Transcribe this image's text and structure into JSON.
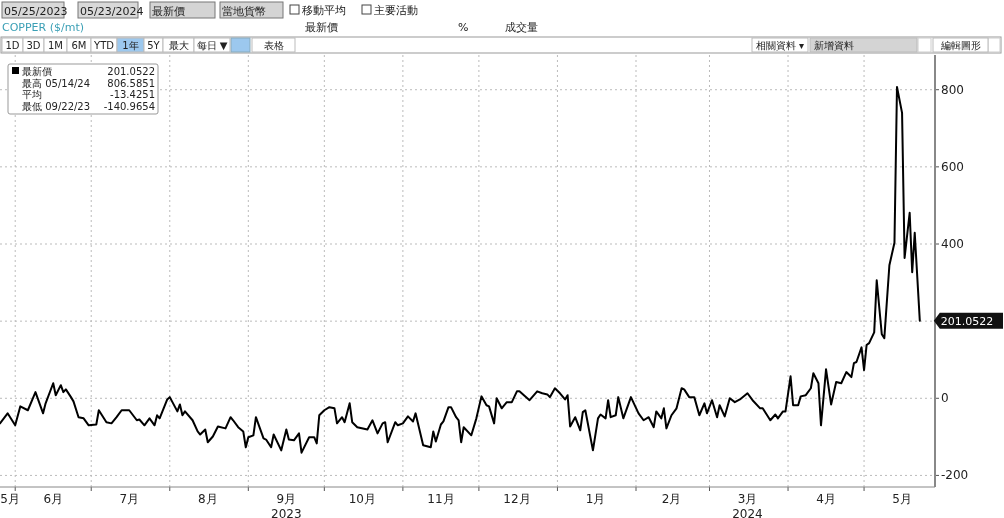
{
  "chart_data": {
    "type": "line",
    "title": "COPPER ($/mt)",
    "x": [
      "2023-05-26",
      "2023-05-29",
      "2023-06-01",
      "2023-06-03",
      "2023-06-06",
      "2023-06-09",
      "2023-06-12",
      "2023-06-13",
      "2023-06-16",
      "2023-06-17",
      "2023-06-19",
      "2023-06-20",
      "2023-06-21",
      "2023-06-23",
      "2023-06-24",
      "2023-06-26",
      "2023-06-28",
      "2023-06-30",
      "2023-07-03",
      "2023-07-04",
      "2023-07-07",
      "2023-07-09",
      "2023-07-11",
      "2023-07-13",
      "2023-07-16",
      "2023-07-19",
      "2023-07-20",
      "2023-07-22",
      "2023-07-24",
      "2023-07-26",
      "2023-07-27",
      "2023-07-28",
      "2023-07-31",
      "2023-08-01",
      "2023-08-04",
      "2023-08-05",
      "2023-08-06",
      "2023-08-07",
      "2023-08-10",
      "2023-08-12",
      "2023-08-13",
      "2023-08-15",
      "2023-08-16",
      "2023-08-18",
      "2023-08-20",
      "2023-08-23",
      "2023-08-25",
      "2023-08-26",
      "2023-08-28",
      "2023-08-30",
      "2023-08-31",
      "2023-09-01",
      "2023-09-03",
      "2023-09-04",
      "2023-09-07",
      "2023-09-08",
      "2023-09-10",
      "2023-09-11",
      "2023-09-14",
      "2023-09-16",
      "2023-09-17",
      "2023-09-19",
      "2023-09-21",
      "2023-09-22",
      "2023-09-25",
      "2023-09-27",
      "2023-09-28",
      "2023-09-29",
      "2023-10-01",
      "2023-10-03",
      "2023-10-05",
      "2023-10-06",
      "2023-10-08",
      "2023-10-09",
      "2023-10-11",
      "2023-10-12",
      "2023-10-14",
      "2023-10-18",
      "2023-10-20",
      "2023-10-22",
      "2023-10-24",
      "2023-10-25",
      "2023-10-26",
      "2023-10-29",
      "2023-10-30",
      "2023-11-01",
      "2023-11-03",
      "2023-11-05",
      "2023-11-06",
      "2023-11-09",
      "2023-11-12",
      "2023-11-13",
      "2023-11-14",
      "2023-11-16",
      "2023-11-17",
      "2023-11-19",
      "2023-11-20",
      "2023-11-22",
      "2023-11-23",
      "2023-11-24",
      "2023-11-25",
      "2023-11-28",
      "2023-11-30",
      "2023-12-02",
      "2023-12-04",
      "2023-12-05",
      "2023-12-07",
      "2023-12-08",
      "2023-12-10",
      "2023-12-12",
      "2023-12-14",
      "2023-12-16",
      "2023-12-17",
      "2023-12-21",
      "2023-12-24",
      "2023-12-26",
      "2023-12-28",
      "2023-12-29",
      "2023-12-31",
      "2024-01-02",
      "2024-01-04",
      "2024-01-05",
      "2024-01-06",
      "2024-01-08",
      "2024-01-10",
      "2024-01-11",
      "2024-01-12",
      "2024-01-15",
      "2024-01-17",
      "2024-01-18",
      "2024-01-20",
      "2024-01-21",
      "2024-01-22",
      "2024-01-24",
      "2024-01-25",
      "2024-01-27",
      "2024-01-30",
      "2024-02-02",
      "2024-02-04",
      "2024-02-06",
      "2024-02-08",
      "2024-02-09",
      "2024-02-11",
      "2024-02-12",
      "2024-02-13",
      "2024-02-15",
      "2024-02-17",
      "2024-02-19",
      "2024-02-20",
      "2024-02-22",
      "2024-02-24",
      "2024-02-26",
      "2024-02-28",
      "2024-02-29",
      "2024-03-02",
      "2024-03-04",
      "2024-03-05",
      "2024-03-07",
      "2024-03-09",
      "2024-03-11",
      "2024-03-13",
      "2024-03-16",
      "2024-03-18",
      "2024-03-21",
      "2024-03-22",
      "2024-03-25",
      "2024-03-27",
      "2024-03-28",
      "2024-03-30",
      "2024-03-31",
      "2024-04-02",
      "2024-04-03",
      "2024-04-05",
      "2024-04-06",
      "2024-04-08",
      "2024-04-10",
      "2024-04-11",
      "2024-04-13",
      "2024-04-14",
      "2024-04-16",
      "2024-04-18",
      "2024-04-20",
      "2024-04-22",
      "2024-04-24",
      "2024-04-26",
      "2024-04-27",
      "2024-04-28",
      "2024-04-30",
      "2024-05-01",
      "2024-05-02",
      "2024-05-03",
      "2024-05-05",
      "2024-05-06",
      "2024-05-08",
      "2024-05-09",
      "2024-05-11",
      "2024-05-13",
      "2024-05-14",
      "2024-05-16",
      "2024-05-17",
      "2024-05-19",
      "2024-05-20",
      "2024-05-21",
      "2024-05-23"
    ],
    "series": [
      {
        "color": "#000000",
        "values": [
          -65,
          -39,
          -70,
          -21,
          -31,
          16,
          -39,
          -13,
          39,
          8,
          34,
          16,
          23,
          3,
          -8,
          -49,
          -52,
          -70,
          -68,
          -31,
          -62,
          -65,
          -49,
          -31,
          -31,
          -57,
          -55,
          -70,
          -52,
          -70,
          -44,
          -52,
          -3,
          3,
          -34,
          -16,
          -44,
          -34,
          -57,
          -86,
          -94,
          -81,
          -114,
          -99,
          -73,
          -78,
          -49,
          -57,
          -75,
          -86,
          -127,
          -101,
          -96,
          -49,
          -104,
          -107,
          -127,
          -94,
          -135,
          -81,
          -107,
          -109,
          -91,
          -141,
          -101,
          -101,
          -117,
          -44,
          -31,
          -23,
          -26,
          -65,
          -49,
          -62,
          -13,
          -62,
          -75,
          -81,
          -57,
          -91,
          -65,
          -62,
          -114,
          -62,
          -70,
          -65,
          -47,
          -60,
          -39,
          -122,
          -127,
          -86,
          -112,
          -68,
          -60,
          -23,
          -23,
          -49,
          -57,
          -114,
          -75,
          -96,
          -52,
          5,
          -18,
          -21,
          -65,
          0,
          -26,
          -10,
          -10,
          18,
          18,
          -5,
          18,
          13,
          10,
          3,
          26,
          13,
          -3,
          8,
          -73,
          -49,
          -83,
          -36,
          -31,
          -135,
          -52,
          -42,
          -52,
          -5,
          -49,
          -44,
          3,
          -52,
          3,
          -39,
          -57,
          -49,
          -75,
          -34,
          -52,
          -26,
          -78,
          -44,
          -26,
          26,
          23,
          3,
          3,
          -44,
          -13,
          -39,
          -5,
          -49,
          -18,
          -47,
          0,
          -10,
          -3,
          13,
          -5,
          -26,
          -26,
          -57,
          -42,
          -52,
          -34,
          -34,
          57,
          -18,
          -18,
          5,
          8,
          26,
          65,
          39,
          -70,
          75,
          -16,
          42,
          39,
          68,
          55,
          91,
          94,
          132,
          73,
          138,
          143,
          171,
          306,
          166,
          156,
          345,
          403,
          807,
          740,
          364,
          481,
          327,
          429,
          201
        ]
      }
    ],
    "xlim": [
      "2023-05-26",
      "2024-05-29"
    ],
    "ylim": [
      -230,
      890
    ],
    "xticks": [
      {
        "value": "2023-05-30",
        "label": "5月"
      },
      {
        "value": "2023-06-01",
        "label": null
      },
      {
        "value": "2023-06-16",
        "label": "6月"
      },
      {
        "value": "2023-07-01",
        "label": null
      },
      {
        "value": "2023-07-16",
        "label": "7月"
      },
      {
        "value": "2023-08-01",
        "label": null
      },
      {
        "value": "2023-08-16",
        "label": "8月"
      },
      {
        "value": "2023-09-01",
        "label": null
      },
      {
        "value": "2023-09-16",
        "label": "9月\n2023"
      },
      {
        "value": "2023-10-01",
        "label": null
      },
      {
        "value": "2023-10-16",
        "label": "10月"
      },
      {
        "value": "2023-11-01",
        "label": null
      },
      {
        "value": "2023-11-16",
        "label": "11月"
      },
      {
        "value": "2023-12-01",
        "label": null
      },
      {
        "value": "2023-12-16",
        "label": "12月"
      },
      {
        "value": "2024-01-01",
        "label": null
      },
      {
        "value": "2024-01-16",
        "label": "1月"
      },
      {
        "value": "2024-02-01",
        "label": null
      },
      {
        "value": "2024-02-15",
        "label": "2月"
      },
      {
        "value": "2024-03-01",
        "label": null
      },
      {
        "value": "2024-03-16",
        "label": "3月\n2024"
      },
      {
        "value": "2024-04-01",
        "label": null
      },
      {
        "value": "2024-04-16",
        "label": "4月"
      },
      {
        "value": "2024-05-01",
        "label": null
      },
      {
        "value": "2024-05-16",
        "label": "5月"
      }
    ],
    "yticks": [
      -200,
      0,
      {
        "value": 200,
        "label": null
      },
      400,
      600,
      800
    ],
    "grid": true,
    "annotations": [
      "05/25/2023",
      "05/23/2024",
      "最新價",
      "當地貨幣",
      "移動平均",
      "主要活動",
      "最新價",
      "%",
      "成交量",
      "1D",
      "3D",
      "1M",
      "6M",
      "YTD",
      "1年",
      "5Y",
      "最大",
      "每日 ▼",
      "表格",
      "相關資料 ▾",
      "新增資料",
      "編輯圖形",
      "最新價",
      "201.0522",
      "最高 05/14/24",
      "806.5851",
      "平均",
      "-13.4251",
      "最低 09/22/23",
      "-140.9654",
      {
        "text": "201.0522",
        "x": "2024-05-23",
        "y": 201.0522
      }
    ]
  }
}
